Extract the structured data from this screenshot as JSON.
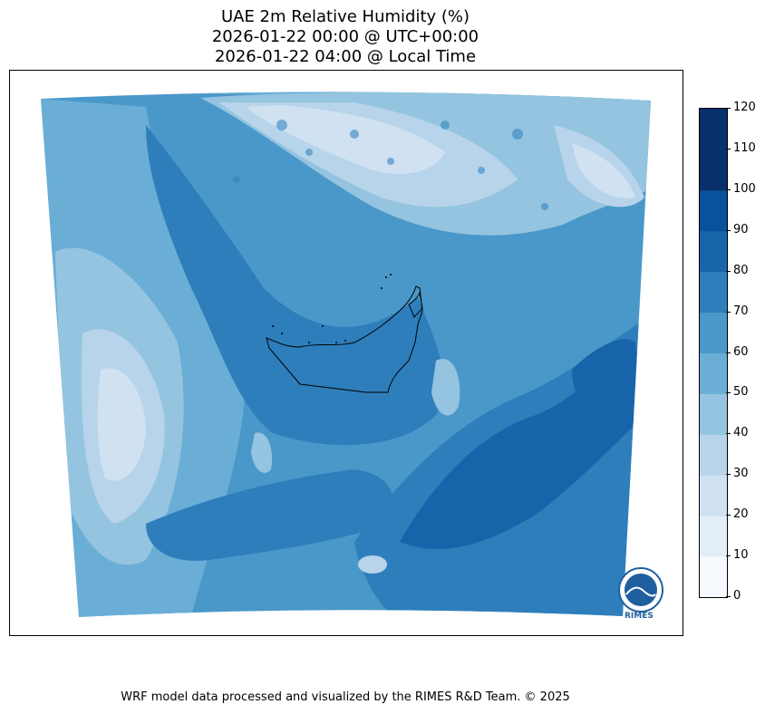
{
  "title": {
    "line1": "UAE 2m Relative Humidity (%)",
    "line2": "2026-01-22 00:00 @ UTC+00:00",
    "line3": "2026-01-22 04:00 @ Local Time"
  },
  "colorbar": {
    "ticks": [
      "0",
      "10",
      "20",
      "30",
      "40",
      "50",
      "60",
      "70",
      "80",
      "90",
      "100",
      "110",
      "120"
    ],
    "colors": [
      "#f7fbff",
      "#e3eef9",
      "#d0e1f2",
      "#b7d4ea",
      "#94c4df",
      "#6aaed6",
      "#4a98c9",
      "#2e7ebc",
      "#1764ab",
      "#08519c",
      "#08306b",
      "#08306b"
    ]
  },
  "logo": {
    "text": "RIMES"
  },
  "footer": "WRF model data processed and visualized by the RIMES R&D Team. © 2025"
}
